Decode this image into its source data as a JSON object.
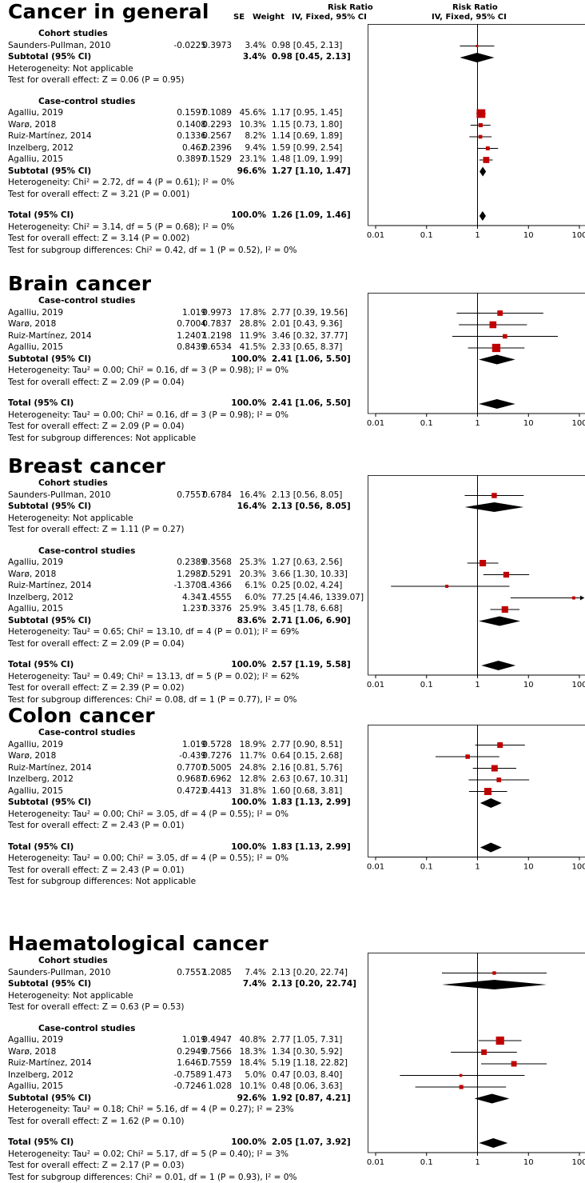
{
  "header": {
    "se": "SE",
    "weight": "Weight",
    "rr_title": "Risk Ratio",
    "rr_method": "IV, Fixed, 95% CI"
  },
  "axis_ticks": [
    "0.01",
    "0.1",
    "1",
    "10",
    "100"
  ],
  "panels": [
    {
      "title": "Cancer in general",
      "groups": [
        {
          "label": "Cohort studies",
          "studies": [
            {
              "name": "Saunders-Pullman, 2010",
              "est": "-0.0225",
              "se": "0.3973",
              "weight": "3.4%",
              "ci": "0.98 [0.45, 2.13]"
            }
          ],
          "subtotal": {
            "label": "Subtotal (95% CI)",
            "weight": "3.4%",
            "ci": "0.98 [0.45, 2.13]"
          },
          "heterogeneity": "Heterogeneity: Not applicable",
          "overall": "Test for overall effect: Z = 0.06 (P = 0.95)"
        },
        {
          "label": "Case-control studies",
          "studies": [
            {
              "name": "Agalliu, 2019",
              "est": "0.1597",
              "se": "0.1089",
              "weight": "45.6%",
              "ci": "1.17 [0.95, 1.45]"
            },
            {
              "name": "Warø, 2018",
              "est": "0.1408",
              "se": "0.2293",
              "weight": "10.3%",
              "ci": "1.15 [0.73, 1.80]"
            },
            {
              "name": "Ruiz-Martínez, 2014",
              "est": "0.1336",
              "se": "0.2567",
              "weight": "8.2%",
              "ci": "1.14 [0.69, 1.89]"
            },
            {
              "name": "Inzelberg, 2012",
              "est": "0.462",
              "se": "0.2396",
              "weight": "9.4%",
              "ci": "1.59 [0.99, 2.54]"
            },
            {
              "name": "Agalliu, 2015",
              "est": "0.3897",
              "se": "0.1529",
              "weight": "23.1%",
              "ci": "1.48 [1.09, 1.99]"
            }
          ],
          "subtotal": {
            "label": "Subtotal (95% CI)",
            "weight": "96.6%",
            "ci": "1.27 [1.10, 1.47]"
          },
          "heterogeneity": "Heterogeneity: Chi² = 2.72, df = 4 (P = 0.61); I² = 0%",
          "overall": "Test for overall effect: Z = 3.21 (P = 0.001)"
        }
      ],
      "total": {
        "label": "Total (95% CI)",
        "weight": "100.0%",
        "ci": "1.26 [1.09, 1.46]"
      },
      "total_lines": [
        "Heterogeneity: Chi² = 3.14, df = 5 (P = 0.68); I² = 0%",
        "Test for overall effect: Z = 3.14 (P = 0.002)",
        "Test for subgroup differences: Chi² = 0.42, df = 1 (P = 0.52), I² = 0%"
      ]
    },
    {
      "title": "Brain cancer",
      "groups": [
        {
          "label": "Case-control studies",
          "studies": [
            {
              "name": "Agalliu, 2019",
              "est": "1.019",
              "se": "0.9973",
              "weight": "17.8%",
              "ci": "2.77 [0.39, 19.56]"
            },
            {
              "name": "Warø, 2018",
              "est": "0.7004",
              "se": "0.7837",
              "weight": "28.8%",
              "ci": "2.01 [0.43, 9.36]"
            },
            {
              "name": "Ruiz-Martínez, 2014",
              "est": "1.2407",
              "se": "1.2198",
              "weight": "11.9%",
              "ci": "3.46 [0.32, 37.77]"
            },
            {
              "name": "Agalliu, 2015",
              "est": "0.8439",
              "se": "0.6534",
              "weight": "41.5%",
              "ci": "2.33 [0.65, 8.37]"
            }
          ],
          "subtotal": {
            "label": "Subtotal (95% CI)",
            "weight": "100.0%",
            "ci": "2.41 [1.06, 5.50]"
          },
          "heterogeneity": "Heterogeneity: Tau² = 0.00; Chi² = 0.16, df = 3 (P = 0.98); I² = 0%",
          "overall": "Test for overall effect: Z = 2.09 (P = 0.04)"
        }
      ],
      "total": {
        "label": "Total (95% CI)",
        "weight": "100.0%",
        "ci": "2.41 [1.06, 5.50]"
      },
      "total_lines": [
        "Heterogeneity: Tau² = 0.00; Chi² = 0.16, df = 3 (P = 0.98); I² = 0%",
        "Test for overall effect: Z = 2.09 (P = 0.04)",
        "Test for subgroup differences: Not applicable"
      ]
    },
    {
      "title": "Breast cancer",
      "groups": [
        {
          "label": "Cohort studies",
          "studies": [
            {
              "name": "Saunders-Pullman, 2010",
              "est": "0.7557",
              "se": "0.6784",
              "weight": "16.4%",
              "ci": "2.13 [0.56, 8.05]"
            }
          ],
          "subtotal": {
            "label": "Subtotal (95% CI)",
            "weight": "16.4%",
            "ci": "2.13 [0.56, 8.05]"
          },
          "heterogeneity": "Heterogeneity: Not applicable",
          "overall": "Test for overall effect: Z = 1.11 (P = 0.27)"
        },
        {
          "label": "Case-control studies",
          "studies": [
            {
              "name": "Agalliu, 2019",
              "est": "0.2389",
              "se": "0.3568",
              "weight": "25.3%",
              "ci": "1.27 [0.63, 2.56]"
            },
            {
              "name": "Warø, 2018",
              "est": "1.2982",
              "se": "0.5291",
              "weight": "20.3%",
              "ci": "3.66 [1.30, 10.33]"
            },
            {
              "name": "Ruiz-Martínez, 2014",
              "est": "-1.3708",
              "se": "1.4366",
              "weight": "6.1%",
              "ci": "0.25 [0.02, 4.24]"
            },
            {
              "name": "Inzelberg, 2012",
              "est": "4.347",
              "se": "1.4555",
              "weight": "6.0%",
              "ci": "77.25 [4.46, 1339.07]"
            },
            {
              "name": "Agalliu, 2015",
              "est": "1.237",
              "se": "0.3376",
              "weight": "25.9%",
              "ci": "3.45 [1.78, 6.68]"
            }
          ],
          "subtotal": {
            "label": "Subtotal (95% CI)",
            "weight": "83.6%",
            "ci": "2.71 [1.06, 6.90]"
          },
          "heterogeneity": "Heterogeneity: Tau² = 0.65; Chi² = 13.10, df = 4 (P = 0.01); I² = 69%",
          "overall": "Test for overall effect: Z = 2.09 (P = 0.04)"
        }
      ],
      "total": {
        "label": "Total (95% CI)",
        "weight": "100.0%",
        "ci": "2.57 [1.19, 5.58]"
      },
      "total_lines": [
        "Heterogeneity: Tau² = 0.49; Chi² = 13.13, df = 5 (P = 0.02); I² = 62%",
        "Test for overall effect: Z = 2.39 (P = 0.02)",
        "Test for subgroup differences: Chi² = 0.08, df = 1 (P = 0.77), I² = 0%"
      ]
    },
    {
      "title": "Colon cancer",
      "groups": [
        {
          "label": "Case-control studies",
          "studies": [
            {
              "name": "Agalliu, 2019",
              "est": "1.019",
              "se": "0.5728",
              "weight": "18.9%",
              "ci": "2.77 [0.90, 8.51]"
            },
            {
              "name": "Warø, 2018",
              "est": "-0.439",
              "se": "0.7276",
              "weight": "11.7%",
              "ci": "0.64 [0.15, 2.68]"
            },
            {
              "name": "Ruiz-Martínez, 2014",
              "est": "0.7707",
              "se": "0.5005",
              "weight": "24.8%",
              "ci": "2.16 [0.81, 5.76]"
            },
            {
              "name": "Inzelberg, 2012",
              "est": "0.9687",
              "se": "0.6962",
              "weight": "12.8%",
              "ci": "2.63 [0.67, 10.31]"
            },
            {
              "name": "Agalliu, 2015",
              "est": "0.4723",
              "se": "0.4413",
              "weight": "31.8%",
              "ci": "1.60 [0.68, 3.81]"
            }
          ],
          "subtotal": {
            "label": "Subtotal (95% CI)",
            "weight": "100.0%",
            "ci": "1.83 [1.13, 2.99]"
          },
          "heterogeneity": "Heterogeneity: Tau² = 0.00; Chi² = 3.05, df = 4 (P = 0.55); I² = 0%",
          "overall": "Test for overall effect: Z = 2.43 (P = 0.01)"
        }
      ],
      "total": {
        "label": "Total (95% CI)",
        "weight": "100.0%",
        "ci": "1.83 [1.13, 2.99]"
      },
      "total_lines": [
        "Heterogeneity: Tau² = 0.00; Chi² = 3.05, df = 4 (P = 0.55); I² = 0%",
        "Test for overall effect: Z = 2.43 (P = 0.01)",
        "Test for subgroup differences: Not applicable"
      ]
    },
    {
      "title": "Haematological cancer",
      "groups": [
        {
          "label": "Cohort studies",
          "studies": [
            {
              "name": "Saunders-Pullman, 2010",
              "est": "0.7557",
              "se": "1.2085",
              "weight": "7.4%",
              "ci": "2.13 [0.20, 22.74]"
            }
          ],
          "subtotal": {
            "label": "Subtotal (95% CI)",
            "weight": "7.4%",
            "ci": "2.13 [0.20, 22.74]"
          },
          "heterogeneity": "Heterogeneity: Not applicable",
          "overall": "Test for overall effect: Z = 0.63 (P = 0.53)"
        },
        {
          "label": "Case-control studies",
          "studies": [
            {
              "name": "Agalliu, 2019",
              "est": "1.019",
              "se": "0.4947",
              "weight": "40.8%",
              "ci": "2.77 [1.05, 7.31]"
            },
            {
              "name": "Warø, 2018",
              "est": "0.2949",
              "se": "0.7566",
              "weight": "18.3%",
              "ci": "1.34 [0.30, 5.92]"
            },
            {
              "name": "Ruiz-Martínez, 2014",
              "est": "1.6461",
              "se": "0.7559",
              "weight": "18.4%",
              "ci": "5.19 [1.18, 22.82]"
            },
            {
              "name": "Inzelberg, 2012",
              "est": "-0.7589",
              "se": "1.473",
              "weight": "5.0%",
              "ci": "0.47 [0.03, 8.40]"
            },
            {
              "name": "Agalliu, 2015",
              "est": "-0.7246",
              "se": "1.028",
              "weight": "10.1%",
              "ci": "0.48 [0.06, 3.63]"
            }
          ],
          "subtotal": {
            "label": "Subtotal (95% CI)",
            "weight": "92.6%",
            "ci": "1.92 [0.87, 4.21]"
          },
          "heterogeneity": "Heterogeneity: Tau² = 0.18; Chi² = 5.16, df = 4 (P = 0.27); I² = 23%",
          "overall": "Test for overall effect: Z = 1.62 (P = 0.10)"
        }
      ],
      "total": {
        "label": "Total (95% CI)",
        "weight": "100.0%",
        "ci": "2.05 [1.07, 3.92]"
      },
      "total_lines": [
        "Heterogeneity: Tau² = 0.02; Chi² = 5.17, df = 5 (P = 0.40); I² = 3%",
        "Test for overall effect: Z = 2.17 (P = 0.03)",
        "Test for subgroup differences: Chi² = 0.01, df = 1 (P = 0.93), I² = 0%"
      ]
    }
  ],
  "chart_data": {
    "type": "forest",
    "x_scale": "log",
    "xlim": [
      0.01,
      100
    ],
    "xticks": [
      "0.01",
      "0.1",
      "1",
      "10",
      "100"
    ],
    "reference_line": 1,
    "marker_color": "#c00000",
    "panels": [
      {
        "title": "Cancer in general",
        "studies": [
          {
            "group": "Cohort studies",
            "name": "Saunders-Pullman, 2010",
            "rr": 0.98,
            "lo": 0.45,
            "hi": 2.13,
            "weight": 3.4
          },
          {
            "group": "Case-control studies",
            "name": "Agalliu, 2019",
            "rr": 1.17,
            "lo": 0.95,
            "hi": 1.45,
            "weight": 45.6
          },
          {
            "group": "Case-control studies",
            "name": "Warø, 2018",
            "rr": 1.15,
            "lo": 0.73,
            "hi": 1.8,
            "weight": 10.3
          },
          {
            "group": "Case-control studies",
            "name": "Ruiz-Martínez, 2014",
            "rr": 1.14,
            "lo": 0.69,
            "hi": 1.89,
            "weight": 8.2
          },
          {
            "group": "Case-control studies",
            "name": "Inzelberg, 2012",
            "rr": 1.59,
            "lo": 0.99,
            "hi": 2.54,
            "weight": 9.4
          },
          {
            "group": "Case-control studies",
            "name": "Agalliu, 2015",
            "rr": 1.48,
            "lo": 1.09,
            "hi": 1.99,
            "weight": 23.1
          }
        ],
        "subtotals": [
          {
            "group": "Cohort studies",
            "rr": 0.98,
            "lo": 0.45,
            "hi": 2.13
          },
          {
            "group": "Case-control studies",
            "rr": 1.27,
            "lo": 1.1,
            "hi": 1.47
          }
        ],
        "total": {
          "rr": 1.26,
          "lo": 1.09,
          "hi": 1.46
        }
      },
      {
        "title": "Brain cancer",
        "studies": [
          {
            "group": "Case-control studies",
            "name": "Agalliu, 2019",
            "rr": 2.77,
            "lo": 0.39,
            "hi": 19.56,
            "weight": 17.8
          },
          {
            "group": "Case-control studies",
            "name": "Warø, 2018",
            "rr": 2.01,
            "lo": 0.43,
            "hi": 9.36,
            "weight": 28.8
          },
          {
            "group": "Case-control studies",
            "name": "Ruiz-Martínez, 2014",
            "rr": 3.46,
            "lo": 0.32,
            "hi": 37.77,
            "weight": 11.9
          },
          {
            "group": "Case-control studies",
            "name": "Agalliu, 2015",
            "rr": 2.33,
            "lo": 0.65,
            "hi": 8.37,
            "weight": 41.5
          }
        ],
        "subtotals": [
          {
            "group": "Case-control studies",
            "rr": 2.41,
            "lo": 1.06,
            "hi": 5.5
          }
        ],
        "total": {
          "rr": 2.41,
          "lo": 1.06,
          "hi": 5.5
        }
      },
      {
        "title": "Breast cancer",
        "studies": [
          {
            "group": "Cohort studies",
            "name": "Saunders-Pullman, 2010",
            "rr": 2.13,
            "lo": 0.56,
            "hi": 8.05,
            "weight": 16.4
          },
          {
            "group": "Case-control studies",
            "name": "Agalliu, 2019",
            "rr": 1.27,
            "lo": 0.63,
            "hi": 2.56,
            "weight": 25.3
          },
          {
            "group": "Case-control studies",
            "name": "Warø, 2018",
            "rr": 3.66,
            "lo": 1.3,
            "hi": 10.33,
            "weight": 20.3
          },
          {
            "group": "Case-control studies",
            "name": "Ruiz-Martínez, 2014",
            "rr": 0.25,
            "lo": 0.02,
            "hi": 4.24,
            "weight": 6.1
          },
          {
            "group": "Case-control studies",
            "name": "Inzelberg, 2012",
            "rr": 77.25,
            "lo": 4.46,
            "hi": 1339.07,
            "weight": 6.0
          },
          {
            "group": "Case-control studies",
            "name": "Agalliu, 2015",
            "rr": 3.45,
            "lo": 1.78,
            "hi": 6.68,
            "weight": 25.9
          }
        ],
        "subtotals": [
          {
            "group": "Cohort studies",
            "rr": 2.13,
            "lo": 0.56,
            "hi": 8.05
          },
          {
            "group": "Case-control studies",
            "rr": 2.71,
            "lo": 1.06,
            "hi": 6.9
          }
        ],
        "total": {
          "rr": 2.57,
          "lo": 1.19,
          "hi": 5.58
        }
      },
      {
        "title": "Colon cancer",
        "studies": [
          {
            "group": "Case-control studies",
            "name": "Agalliu, 2019",
            "rr": 2.77,
            "lo": 0.9,
            "hi": 8.51,
            "weight": 18.9
          },
          {
            "group": "Case-control studies",
            "name": "Warø, 2018",
            "rr": 0.64,
            "lo": 0.15,
            "hi": 2.68,
            "weight": 11.7
          },
          {
            "group": "Case-control studies",
            "name": "Ruiz-Martínez, 2014",
            "rr": 2.16,
            "lo": 0.81,
            "hi": 5.76,
            "weight": 24.8
          },
          {
            "group": "Case-control studies",
            "name": "Inzelberg, 2012",
            "rr": 2.63,
            "lo": 0.67,
            "hi": 10.31,
            "weight": 12.8
          },
          {
            "group": "Case-control studies",
            "name": "Agalliu, 2015",
            "rr": 1.6,
            "lo": 0.68,
            "hi": 3.81,
            "weight": 31.8
          }
        ],
        "subtotals": [
          {
            "group": "Case-control studies",
            "rr": 1.83,
            "lo": 1.13,
            "hi": 2.99
          }
        ],
        "total": {
          "rr": 1.83,
          "lo": 1.13,
          "hi": 2.99
        }
      },
      {
        "title": "Haematological cancer",
        "studies": [
          {
            "group": "Cohort studies",
            "name": "Saunders-Pullman, 2010",
            "rr": 2.13,
            "lo": 0.2,
            "hi": 22.74,
            "weight": 7.4
          },
          {
            "group": "Case-control studies",
            "name": "Agalliu, 2019",
            "rr": 2.77,
            "lo": 1.05,
            "hi": 7.31,
            "weight": 40.8
          },
          {
            "group": "Case-control studies",
            "name": "Warø, 2018",
            "rr": 1.34,
            "lo": 0.3,
            "hi": 5.92,
            "weight": 18.3
          },
          {
            "group": "Case-control studies",
            "name": "Ruiz-Martínez, 2014",
            "rr": 5.19,
            "lo": 1.18,
            "hi": 22.82,
            "weight": 18.4
          },
          {
            "group": "Case-control studies",
            "name": "Inzelberg, 2012",
            "rr": 0.47,
            "lo": 0.03,
            "hi": 8.4,
            "weight": 5.0
          },
          {
            "group": "Case-control studies",
            "name": "Agalliu, 2015",
            "rr": 0.48,
            "lo": 0.06,
            "hi": 3.63,
            "weight": 10.1
          }
        ],
        "subtotals": [
          {
            "group": "Cohort studies",
            "rr": 2.13,
            "lo": 0.2,
            "hi": 22.74
          },
          {
            "group": "Case-control studies",
            "rr": 1.92,
            "lo": 0.87,
            "hi": 4.21
          }
        ],
        "total": {
          "rr": 2.05,
          "lo": 1.07,
          "hi": 3.92
        }
      }
    ]
  }
}
